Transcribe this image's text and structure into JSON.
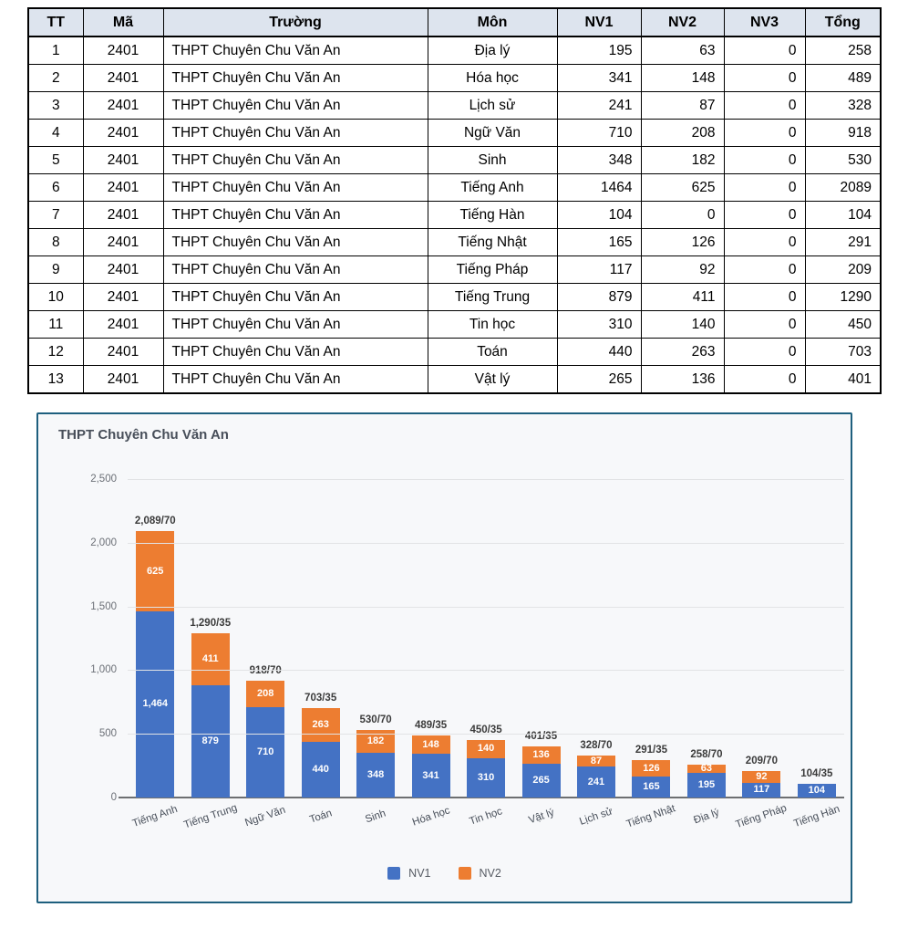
{
  "table": {
    "headers": [
      "TT",
      "Mã",
      "Trường",
      "Môn",
      "NV1",
      "NV2",
      "NV3",
      "Tổng"
    ],
    "rows": [
      [
        "1",
        "2401",
        "THPT Chuyên Chu Văn An",
        "Địa lý",
        "195",
        "63",
        "0",
        "258"
      ],
      [
        "2",
        "2401",
        "THPT Chuyên Chu Văn An",
        "Hóa học",
        "341",
        "148",
        "0",
        "489"
      ],
      [
        "3",
        "2401",
        "THPT Chuyên Chu Văn An",
        "Lịch sử",
        "241",
        "87",
        "0",
        "328"
      ],
      [
        "4",
        "2401",
        "THPT Chuyên Chu Văn An",
        "Ngữ Văn",
        "710",
        "208",
        "0",
        "918"
      ],
      [
        "5",
        "2401",
        "THPT Chuyên Chu Văn An",
        "Sinh",
        "348",
        "182",
        "0",
        "530"
      ],
      [
        "6",
        "2401",
        "THPT Chuyên Chu Văn An",
        "Tiếng Anh",
        "1464",
        "625",
        "0",
        "2089"
      ],
      [
        "7",
        "2401",
        "THPT Chuyên Chu Văn An",
        "Tiếng Hàn",
        "104",
        "0",
        "0",
        "104"
      ],
      [
        "8",
        "2401",
        "THPT Chuyên Chu Văn An",
        "Tiếng Nhật",
        "165",
        "126",
        "0",
        "291"
      ],
      [
        "9",
        "2401",
        "THPT Chuyên Chu Văn An",
        "Tiếng Pháp",
        "117",
        "92",
        "0",
        "209"
      ],
      [
        "10",
        "2401",
        "THPT Chuyên Chu Văn An",
        "Tiếng Trung",
        "879",
        "411",
        "0",
        "1290"
      ],
      [
        "11",
        "2401",
        "THPT Chuyên Chu Văn An",
        "Tin học",
        "310",
        "140",
        "0",
        "450"
      ],
      [
        "12",
        "2401",
        "THPT Chuyên Chu Văn An",
        "Toán",
        "440",
        "263",
        "0",
        "703"
      ],
      [
        "13",
        "2401",
        "THPT Chuyên Chu Văn An",
        "Vật lý",
        "265",
        "136",
        "0",
        "401"
      ]
    ]
  },
  "chart": {
    "title": "THPT Chuyên Chu Văn An",
    "colors": {
      "nv1": "#4472c4",
      "nv2": "#ed7d31",
      "border": "#1e5f7e",
      "background": "#f7f8fa"
    }
  },
  "chart_data": {
    "type": "bar",
    "stacked": true,
    "title": "THPT Chuyên Chu Văn An",
    "categories": [
      "Tiếng Anh",
      "Tiếng Trung",
      "Ngữ Văn",
      "Toán",
      "Sinh",
      "Hóa học",
      "Tin học",
      "Vật lý",
      "Lịch sử",
      "Tiếng Nhật",
      "Địa lý",
      "Tiếng Pháp",
      "Tiếng Hàn"
    ],
    "series": [
      {
        "name": "NV1",
        "color": "#4472c4",
        "values": [
          1464,
          879,
          710,
          440,
          348,
          341,
          310,
          265,
          241,
          165,
          195,
          117,
          104
        ]
      },
      {
        "name": "NV2",
        "color": "#ed7d31",
        "values": [
          625,
          411,
          208,
          263,
          182,
          148,
          140,
          136,
          87,
          126,
          63,
          92,
          0
        ]
      }
    ],
    "segment_labels": {
      "NV1": [
        "1,464",
        "879",
        "710",
        "440",
        "348",
        "341",
        "310",
        "265",
        "241",
        "165",
        "195",
        "117",
        "104"
      ],
      "NV2": [
        "625",
        "411",
        "208",
        "263",
        "182",
        "148",
        "140",
        "136",
        "87",
        "126",
        "63",
        "92",
        ""
      ]
    },
    "total_labels": [
      "2,089/70",
      "1,290/35",
      "918/70",
      "703/35",
      "530/70",
      "489/35",
      "450/35",
      "401/35",
      "328/70",
      "291/35",
      "258/70",
      "209/70",
      "104/35"
    ],
    "totals": [
      2089,
      1290,
      918,
      703,
      530,
      489,
      450,
      401,
      328,
      291,
      258,
      209,
      104
    ],
    "ylim": [
      0,
      2500
    ],
    "ytick_values": [
      0,
      500,
      1000,
      1500,
      2000,
      2500
    ],
    "yticks": [
      "0",
      "500",
      "1,000",
      "1,500",
      "2,000",
      "2,500"
    ],
    "xlabel": "",
    "ylabel": "",
    "grid": true,
    "legend_position": "bottom"
  }
}
